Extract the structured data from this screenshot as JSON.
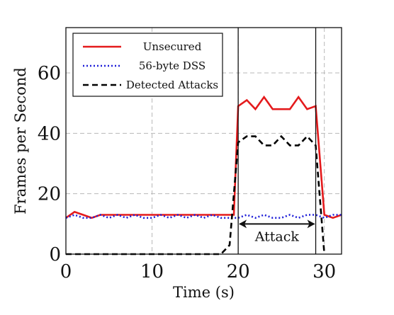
{
  "chart_data": {
    "type": "line",
    "title": "",
    "xlabel": "Time (s)",
    "ylabel": "Frames per Second",
    "xlim": [
      0,
      32
    ],
    "ylim": [
      0,
      75
    ],
    "xticks": [
      0,
      10,
      20,
      30
    ],
    "yticks": [
      0,
      20,
      40,
      60
    ],
    "grid": true,
    "legend_position": "top-left",
    "series": [
      {
        "name": "Unsecured",
        "color": "#e41a1c",
        "style": "solid",
        "x": [
          0,
          1,
          2,
          3,
          4,
          5,
          6,
          7,
          8,
          9,
          10,
          11,
          12,
          13,
          14,
          15,
          16,
          17,
          18,
          19,
          19.5,
          20,
          21,
          22,
          23,
          24,
          25,
          26,
          27,
          28,
          29,
          30,
          31,
          32
        ],
        "y": [
          12,
          14,
          13,
          12,
          13,
          13,
          13,
          13,
          13,
          13,
          13,
          13,
          13,
          13,
          13,
          13,
          13,
          13,
          13,
          13,
          13,
          49,
          51,
          48,
          52,
          48,
          48,
          48,
          52,
          48,
          49,
          13,
          12,
          13
        ]
      },
      {
        "name": "56-byte DSS",
        "color": "#1f1fd8",
        "style": "dotted",
        "x": [
          0,
          1,
          2,
          3,
          4,
          5,
          6,
          7,
          8,
          9,
          10,
          11,
          12,
          13,
          14,
          15,
          16,
          17,
          18,
          19,
          20,
          21,
          22,
          23,
          24,
          25,
          26,
          27,
          28,
          29,
          30,
          31,
          32
        ],
        "y": [
          12,
          13,
          12,
          12,
          13,
          12,
          13,
          12,
          13,
          12,
          12,
          13,
          12,
          13,
          12,
          13,
          12,
          13,
          12,
          12,
          12,
          13,
          12,
          13,
          12,
          12,
          13,
          12,
          13,
          13,
          12,
          13,
          13
        ]
      },
      {
        "name": "Detected Attacks",
        "color": "#000000",
        "style": "dashed",
        "x": [
          0,
          5,
          10,
          15,
          18,
          19,
          20,
          21,
          22,
          23,
          24,
          25,
          26,
          27,
          28,
          29,
          30
        ],
        "y": [
          0,
          0,
          0,
          0,
          0,
          3,
          37,
          39,
          39,
          36,
          36,
          39,
          36,
          36,
          39,
          36,
          0
        ]
      }
    ],
    "vlines": [
      20,
      29
    ],
    "annotations": [
      {
        "text": "Attack",
        "x_start": 20,
        "x_end": 29,
        "y": 10
      }
    ]
  }
}
